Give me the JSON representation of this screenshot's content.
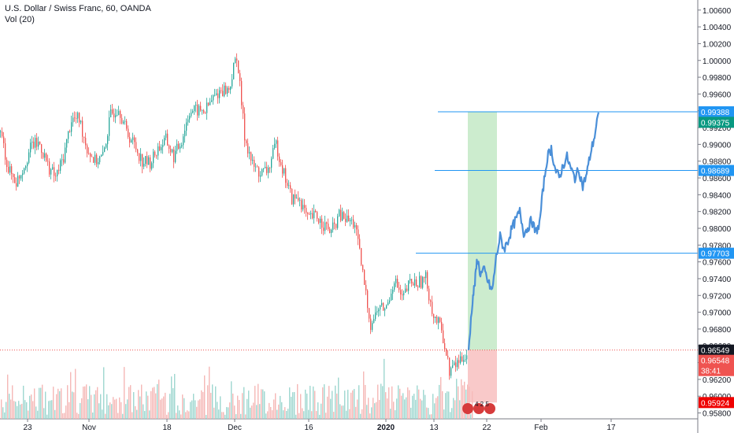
{
  "chart_data": {
    "type": "line",
    "title": "U.S. Dollar / Swiss Franc, 60, OANDA",
    "subtitle": "Vol (20)",
    "ylim": [
      0.9573,
      1.0072
    ],
    "y_ticks": [
      "1.00600",
      "1.00400",
      "1.00200",
      "1.00000",
      "0.99800",
      "0.99600",
      "0.99400",
      "0.99200",
      "0.99000",
      "0.98800",
      "0.98600",
      "0.98400",
      "0.98200",
      "0.98000",
      "0.97800",
      "0.97600",
      "0.97400",
      "0.97200",
      "0.97000",
      "0.96800",
      "0.96600",
      "0.96400",
      "0.96200",
      "0.96000",
      "0.95800"
    ],
    "x_ticks": [
      "23",
      "Nov",
      "18",
      "Dec",
      "16",
      "2020",
      "13",
      "22",
      "Feb",
      "17"
    ],
    "series": [
      {
        "style": "candles",
        "colors": {
          "up": "#26a69a",
          "down": "#ef5350"
        },
        "x": [
          0,
          10,
          20,
          30,
          40,
          50,
          60,
          70,
          80,
          90,
          100,
          110,
          120,
          130,
          140,
          150,
          160,
          170,
          180,
          190,
          200,
          210,
          220,
          230,
          240,
          250,
          260,
          270,
          280,
          290,
          300,
          310,
          320,
          330,
          340,
          350,
          360,
          370,
          380,
          390,
          400,
          410,
          420,
          430,
          440,
          450,
          460,
          470,
          480,
          490,
          500,
          510,
          520,
          530,
          540,
          550,
          560,
          570,
          580,
          590
        ],
        "values": [
          0.9915,
          0.987,
          0.9855,
          0.9875,
          0.99,
          0.99,
          0.9875,
          0.986,
          0.9885,
          0.993,
          0.993,
          0.9895,
          0.988,
          0.9885,
          0.9935,
          0.9945,
          0.9915,
          0.99,
          0.988,
          0.9878,
          0.9895,
          0.9905,
          0.9885,
          0.9905,
          0.994,
          0.994,
          0.994,
          0.9955,
          0.9965,
          0.9965,
          1.0007,
          0.991,
          0.9875,
          0.9865,
          0.987,
          0.99,
          0.9865,
          0.9835,
          0.9835,
          0.981,
          0.9815,
          0.9805,
          0.9795,
          0.9815,
          0.981,
          0.9805,
          0.9745,
          0.9685,
          0.9705,
          0.9705,
          0.974,
          0.9715,
          0.9735,
          0.9735,
          0.974,
          0.9695,
          0.968,
          0.963,
          0.964,
          0.965
        ]
      },
      {
        "style": "line",
        "color": "#4a8fd8",
        "x": [
          595,
          600,
          603,
          606,
          610,
          615,
          620,
          625,
          630,
          635,
          640,
          645,
          650,
          655,
          660,
          665,
          670,
          675,
          680,
          685,
          690,
          695,
          700,
          705,
          710,
          715,
          720,
          725,
          730,
          735,
          740,
          745,
          750,
          755,
          760
        ],
        "values": [
          0.9655,
          0.9715,
          0.9735,
          0.9765,
          0.9745,
          0.975,
          0.9735,
          0.9725,
          0.9765,
          0.979,
          0.9775,
          0.9785,
          0.98,
          0.981,
          0.982,
          0.9795,
          0.98,
          0.981,
          0.9795,
          0.9805,
          0.985,
          0.9885,
          0.9895,
          0.987,
          0.986,
          0.9875,
          0.9885,
          0.987,
          0.986,
          0.987,
          0.985,
          0.9865,
          0.989,
          0.991,
          0.9938
        ]
      }
    ],
    "annotations": {
      "entry": 0.96549,
      "target": 0.99388,
      "stop": 0.95924,
      "current": 0.99375,
      "level_low": 0.97703,
      "level_mid": 0.98689
    },
    "badges": [
      {
        "id": "target",
        "label": "0.99388",
        "color": "#2196f3"
      },
      {
        "id": "current",
        "label": "0.99375",
        "color": "#089981"
      },
      {
        "id": "mid",
        "label": "0.98689",
        "color": "#2196f3"
      },
      {
        "id": "low",
        "label": "0.97703",
        "color": "#2196f3"
      },
      {
        "id": "entry",
        "label": "0.96549",
        "color": "#131722"
      },
      {
        "id": "entry2",
        "label": "0.96548",
        "color": "#ef5350"
      },
      {
        "id": "timer",
        "label": "38:41",
        "color": "#ef5350"
      },
      {
        "id": "stop",
        "label": "0.95924",
        "color": "#ef0000"
      }
    ],
    "events_label": "4 2 5",
    "grid": false,
    "legend": "top-left"
  }
}
